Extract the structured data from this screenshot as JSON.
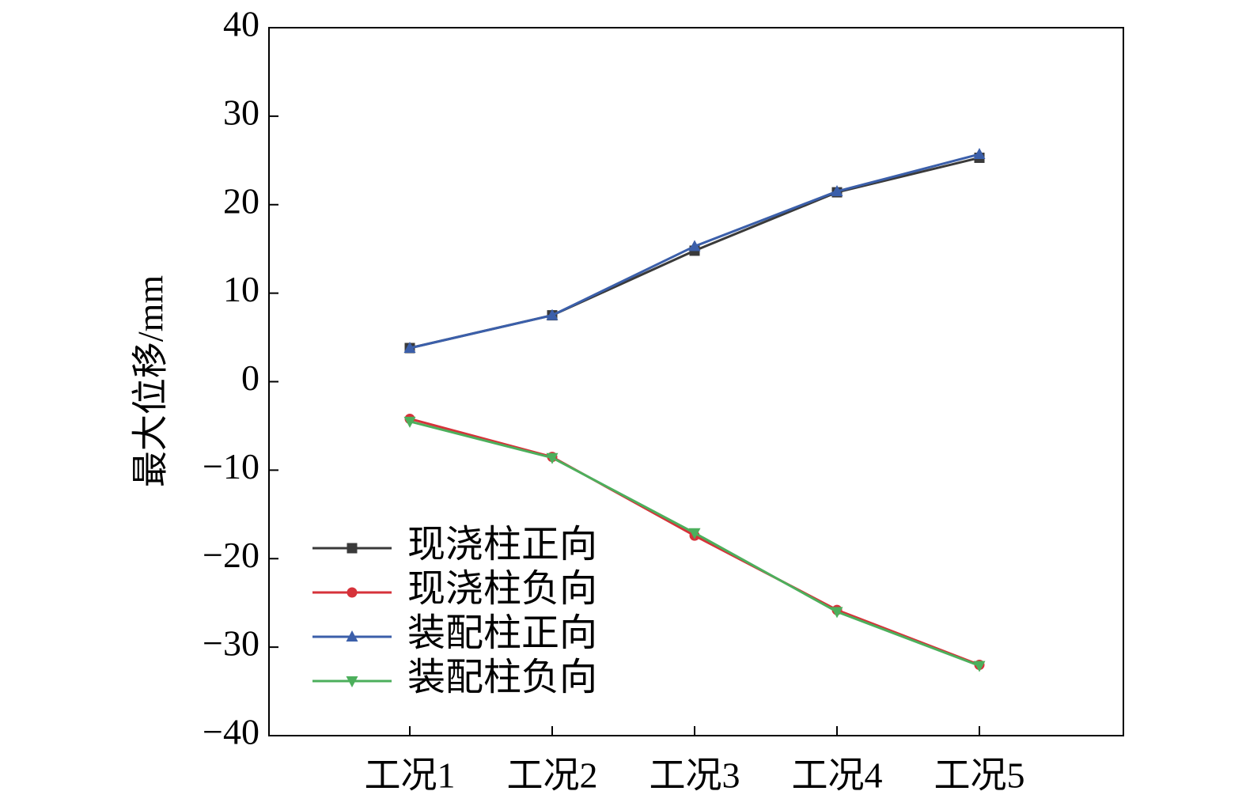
{
  "chart_data": {
    "type": "line",
    "title": "",
    "xlabel": "",
    "ylabel": "最大位移/mm",
    "categories": [
      "工况1",
      "工况2",
      "工况3",
      "工况4",
      "工况5"
    ],
    "ylim": [
      -40,
      40
    ],
    "yticks": [
      40,
      30,
      20,
      10,
      0,
      -10,
      -20,
      -30,
      -40
    ],
    "ytick_labels": [
      "40",
      "30",
      "20",
      "10",
      "0",
      "−10",
      "−20",
      "−30",
      "−40"
    ],
    "grid": false,
    "legend_position": "bottom-left",
    "series": [
      {
        "name": "现浇柱正向",
        "marker": "square",
        "color": "#3a3a3a",
        "values": [
          3.8,
          7.5,
          14.8,
          21.4,
          25.3
        ]
      },
      {
        "name": "现浇柱负向",
        "marker": "circle",
        "color": "#d6323a",
        "values": [
          -4.2,
          -8.5,
          -17.4,
          -25.8,
          -32.0
        ]
      },
      {
        "name": "装配柱正向",
        "marker": "triangle-up",
        "color": "#3b5faa",
        "values": [
          3.8,
          7.5,
          15.3,
          21.5,
          25.7
        ]
      },
      {
        "name": "装配柱负向",
        "marker": "triangle-down",
        "color": "#4caf5c",
        "values": [
          -4.5,
          -8.6,
          -17.1,
          -26.0,
          -32.1
        ]
      }
    ]
  }
}
